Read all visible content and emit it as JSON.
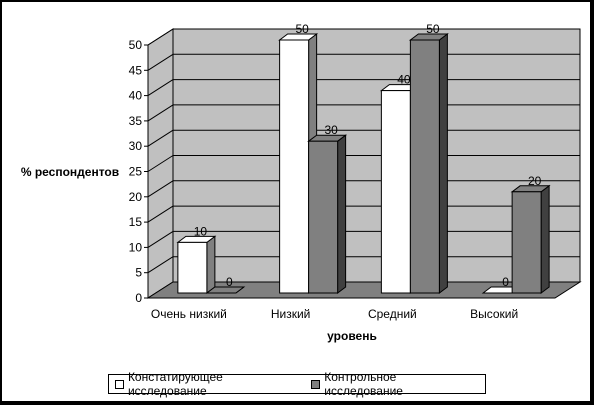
{
  "chart_data": {
    "type": "bar",
    "style": "3d-clustered-column",
    "categories": [
      "Очень низкий",
      "Низкий",
      "Средний",
      "Высокий"
    ],
    "series": [
      {
        "name": "Констатирующее исследование",
        "values": [
          10,
          50,
          40,
          0
        ],
        "color": "#ffffff"
      },
      {
        "name": "Контрольное исследование",
        "values": [
          0,
          30,
          50,
          20
        ],
        "color": "#808080"
      }
    ],
    "xlabel": "уровень",
    "ylabel": "% респондентов",
    "ylim": [
      0,
      50
    ],
    "yticks": [
      "0",
      "5",
      "10",
      "15",
      "20",
      "25",
      "30",
      "35",
      "40",
      "45",
      "50"
    ],
    "grid": true,
    "legend": "bottom",
    "colors": {
      "wall": "#c0c0c0",
      "floor": "#808080",
      "side_white": "#808080",
      "side_gray": "#404040"
    }
  }
}
